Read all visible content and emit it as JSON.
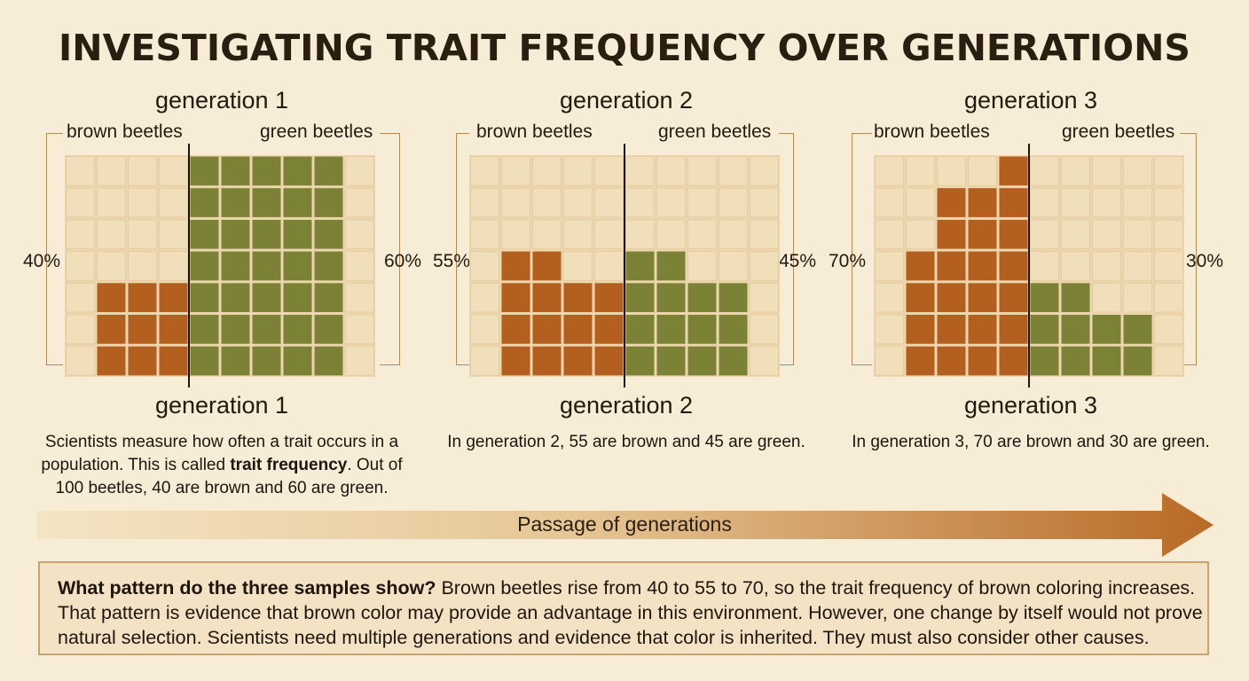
{
  "title": "INVESTIGATING TRAIT FREQUENCY OVER GENERATIONS",
  "colors": {
    "brown": "#b35f1f",
    "green": "#7b8236",
    "empty": "#f1dfbb",
    "background": "#f7ecd6"
  },
  "panels": [
    {
      "generation_label": "generation 1",
      "brown_label": "brown beetles",
      "green_label": "green beetles",
      "brown_percent": "40%",
      "green_percent": "60%",
      "brown_count": 40,
      "green_count": 60,
      "caption_pre": "Scientists measure how often a trait occurs in a population. This is called ",
      "caption_bold": "trait frequency",
      "caption_post": ". Out of 100 beetles, 40 are brown and 60 are green."
    },
    {
      "generation_label": "generation 2",
      "brown_label": "brown beetles",
      "green_label": "green beetles",
      "brown_percent": "55%",
      "green_percent": "45%",
      "brown_count": 55,
      "green_count": 45,
      "caption_pre": "In generation 2, 55 are brown and 45 are green.",
      "caption_bold": "",
      "caption_post": ""
    },
    {
      "generation_label": "generation 3",
      "brown_label": "brown beetles",
      "green_label": "green beetles",
      "brown_percent": "70%",
      "green_percent": "30%",
      "brown_count": 70,
      "green_count": 30,
      "caption_pre": "In generation 3, 70 are brown and 30 are green.",
      "caption_bold": "",
      "caption_post": ""
    }
  ],
  "arrow_label": "Passage of generations",
  "summary_question": "What pattern do the three samples show?",
  "summary_text": " Brown beetles rise from 40 to 55 to 70, so the trait frequency of brown coloring increases. That pattern is evidence that brown color may provide an advantage in this environment. However, one change by itself would not prove natural selection. Scientists need multiple generations and evidence that color is inherited. They must also consider other causes."
}
